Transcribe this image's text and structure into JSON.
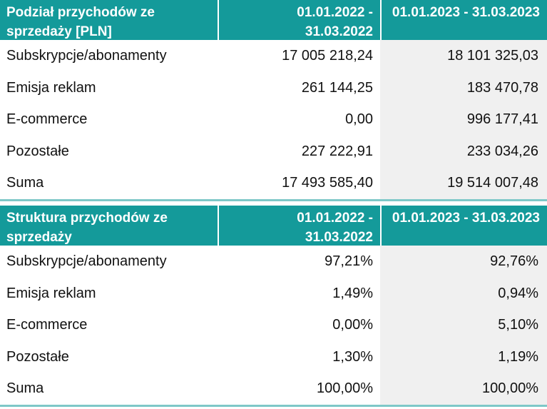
{
  "table1": {
    "header": {
      "label": "Podział przychodów ze sprzedaży [PLN]",
      "col1": "01.01.2022 - 31.03.2022",
      "col2": "01.01.2023 - 31.03.2023"
    },
    "rows": [
      {
        "label": "Subskrypcje/abonamenty",
        "v1": "17 005 218,24",
        "v2": "18 101 325,03"
      },
      {
        "label": "Emisja reklam",
        "v1": "261 144,25",
        "v2": "183 470,78"
      },
      {
        "label": "E-commerce",
        "v1": "0,00",
        "v2": "996 177,41"
      },
      {
        "label": "Pozostałe",
        "v1": "227 222,91",
        "v2": "233 034,26"
      },
      {
        "label": "Suma",
        "v1": "17 493 585,40",
        "v2": "19 514 007,48"
      }
    ]
  },
  "table2": {
    "header": {
      "label": "Struktura przychodów ze sprzedaży",
      "col1": "01.01.2022 - 31.03.2022",
      "col2": "01.01.2023 - 31.03.2023"
    },
    "rows": [
      {
        "label": "Subskrypcje/abonamenty",
        "v1": "97,21%",
        "v2": "92,76%"
      },
      {
        "label": "Emisja reklam",
        "v1": "1,49%",
        "v2": "0,94%"
      },
      {
        "label": "E-commerce",
        "v1": "0,00%",
        "v2": "5,10%"
      },
      {
        "label": "Pozostałe",
        "v1": "1,30%",
        "v2": "1,19%"
      },
      {
        "label": "Suma",
        "v1": "100,00%",
        "v2": "100,00%"
      }
    ]
  },
  "colors": {
    "header_bg": "#149a9a",
    "header_text": "#ffffff",
    "alt_col_bg": "#f0f0f0"
  }
}
